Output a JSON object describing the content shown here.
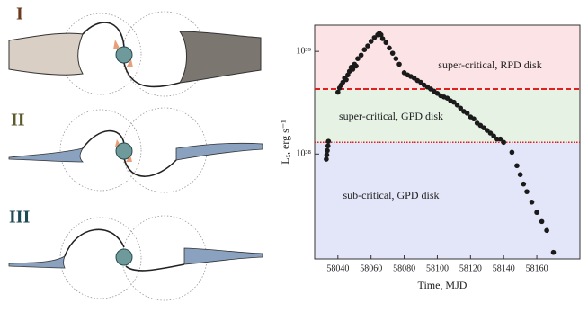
{
  "diagram": {
    "labels": [
      "I",
      "II",
      "III"
    ]
  },
  "chart_data": {
    "type": "scatter",
    "xlabel": "Time, MJD",
    "ylabel": "Lₓ, erg s⁻¹",
    "log_y": true,
    "xlim": [
      58026,
      58186
    ],
    "ylim": [
      9.5e+36,
      1.8e+39
    ],
    "xticks": [
      58040,
      58060,
      58080,
      58100,
      58120,
      58140,
      58160
    ],
    "yticks": [
      {
        "value": 1e+38,
        "label": "10³⁸"
      },
      {
        "value": 1e+39,
        "label": "10³⁹"
      }
    ],
    "thresholds": [
      {
        "value": 4.3e+38,
        "color": "#e02020",
        "style": "dashed"
      },
      {
        "value": 1.3e+38,
        "color": "#e02020",
        "style": "dotted"
      }
    ],
    "regions": [
      {
        "label": "super-critical, RPD disk",
        "color": "#fbe3e6"
      },
      {
        "label": "super-critical, GPD disk",
        "color": "#e5f2e4"
      },
      {
        "label": "sub-critical, GPD disk",
        "color": "#e3e5f8"
      }
    ],
    "series": [
      {
        "color": "#1a1a1a",
        "x": [
          58033.0,
          58033.3,
          58033.6,
          58034.0,
          58034.3,
          58040,
          58041,
          58042,
          58043,
          58044,
          58045,
          58046,
          58047,
          58048,
          58049,
          58050,
          58051,
          58052,
          58054,
          58056,
          58058,
          58060,
          58062,
          58064,
          58065,
          58066,
          58067,
          58069,
          58071,
          58073,
          58075,
          58077,
          58080,
          58082,
          58084,
          58086,
          58088,
          58090,
          58092,
          58094,
          58096,
          58098,
          58100,
          58102,
          58104,
          58106,
          58108,
          58110,
          58112,
          58114,
          58116,
          58118,
          58120,
          58122,
          58124,
          58126,
          58128,
          58130,
          58132,
          58134,
          58136,
          58138,
          58140,
          58145,
          58148,
          58150,
          58152,
          58154,
          58157,
          58160,
          58163,
          58166,
          58170
        ],
        "values": [
          8.9e+37,
          9.8e+37,
          1.08e+38,
          1.2e+38,
          1.33e+38,
          4e+38,
          4.4e+38,
          4.7e+38,
          5e+38,
          5.5e+38,
          5.3e+38,
          5.9e+38,
          6.4e+38,
          7e+38,
          6.7e+38,
          7.5e+38,
          7.2e+38,
          8.5e+38,
          9.2e+38,
          1.04e+39,
          1.13e+39,
          1.25e+39,
          1.36e+39,
          1.45e+39,
          1.5e+39,
          1.45e+39,
          1.33e+39,
          1.22e+39,
          1.08e+39,
          9.6e+38,
          8.5e+38,
          7.5e+38,
          6.2e+38,
          5.9e+38,
          5.7e+38,
          5.5e+38,
          5.2e+38,
          5e+38,
          4.7e+38,
          4.5e+38,
          4.3e+38,
          4.1e+38,
          3.9e+38,
          3.7e+38,
          3.6e+38,
          3.5e+38,
          3.3e+38,
          3.2e+38,
          3e+38,
          2.8e+38,
          2.6e+38,
          2.5e+38,
          2.3e+38,
          2.2e+38,
          2e+38,
          1.9e+38,
          1.8e+38,
          1.7e+38,
          1.6e+38,
          1.5e+38,
          1.4e+38,
          1.4e+38,
          1.3e+38,
          1.04e+38,
          7.7e+37,
          6.3e+37,
          5.1e+37,
          4.3e+37,
          3.4e+37,
          2.7e+37,
          2.2e+37,
          1.8e+37,
          1.1e+37
        ]
      }
    ]
  }
}
